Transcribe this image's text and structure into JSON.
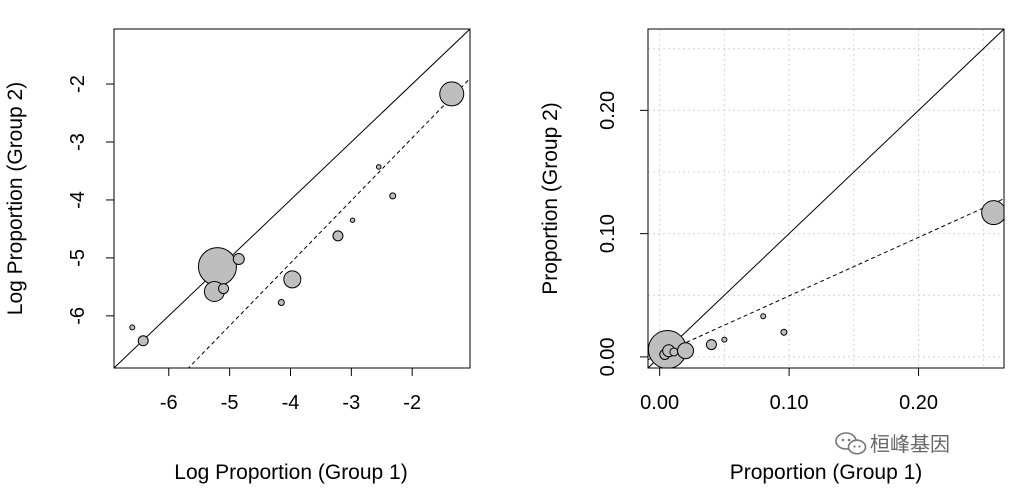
{
  "chart_data": [
    {
      "type": "scatter",
      "title": "",
      "xlabel": "Log Proportion (Group 1)",
      "ylabel": "Log Proportion (Group 2)",
      "xlim": [
        -6.9,
        -1.05
      ],
      "ylim": [
        -6.9,
        -1.05
      ],
      "xticks": [
        -6,
        -5,
        -4,
        -3,
        -2
      ],
      "xtick_labels": [
        "-6",
        "-5",
        "-4",
        "-3",
        "-2"
      ],
      "yticks": [
        -6,
        -5,
        -4,
        -3,
        -2
      ],
      "ytick_labels": [
        "-6",
        "-5",
        "-4",
        "-3",
        "-2"
      ],
      "grid": false,
      "lines": [
        {
          "name": "identity",
          "style": "solid",
          "slope": 1,
          "intercept": 0
        },
        {
          "name": "fit",
          "style": "dashed",
          "slope": 1.08,
          "intercept": -0.77
        }
      ],
      "points": [
        {
          "x": -6.6,
          "y": -6.2,
          "size": 2.5
        },
        {
          "x": -6.42,
          "y": -6.43,
          "size": 5
        },
        {
          "x": -5.2,
          "y": -5.15,
          "size": 19
        },
        {
          "x": -5.25,
          "y": -5.58,
          "size": 10
        },
        {
          "x": -5.1,
          "y": -5.53,
          "size": 5
        },
        {
          "x": -4.85,
          "y": -5.02,
          "size": 5.5
        },
        {
          "x": -4.15,
          "y": -5.77,
          "size": 3
        },
        {
          "x": -3.97,
          "y": -5.37,
          "size": 8.5
        },
        {
          "x": -3.22,
          "y": -4.62,
          "size": 5
        },
        {
          "x": -2.98,
          "y": -4.35,
          "size": 2.2
        },
        {
          "x": -2.55,
          "y": -3.43,
          "size": 2.3
        },
        {
          "x": -2.32,
          "y": -3.93,
          "size": 3
        },
        {
          "x": -1.35,
          "y": -2.17,
          "size": 12
        }
      ]
    },
    {
      "type": "scatter",
      "title": "",
      "xlabel": "Proportion (Group 1)",
      "ylabel": "Proportion (Group 2)",
      "xlim": [
        -0.009,
        0.266
      ],
      "ylim": [
        -0.009,
        0.266
      ],
      "xticks": [
        0.0,
        0.1,
        0.2
      ],
      "xtick_labels": [
        "0.00",
        "0.10",
        "0.20"
      ],
      "yticks": [
        0.0,
        0.1,
        0.2
      ],
      "ytick_labels": [
        "0.00",
        "0.10",
        "0.20"
      ],
      "grid": true,
      "grid_step": 0.05,
      "lines": [
        {
          "name": "identity",
          "style": "solid",
          "slope": 1,
          "intercept": 0
        },
        {
          "name": "fit",
          "style": "dashed",
          "slope": 0.475,
          "intercept": 0.002
        }
      ],
      "points": [
        {
          "x": 0.006,
          "y": 0.006,
          "size": 19
        },
        {
          "x": 0.004,
          "y": 0.002,
          "size": 5
        },
        {
          "x": 0.007,
          "y": 0.005,
          "size": 6
        },
        {
          "x": 0.011,
          "y": 0.004,
          "size": 4
        },
        {
          "x": 0.016,
          "y": 0.005,
          "size": 3
        },
        {
          "x": 0.02,
          "y": 0.005,
          "size": 8
        },
        {
          "x": 0.04,
          "y": 0.01,
          "size": 5
        },
        {
          "x": 0.05,
          "y": 0.014,
          "size": 2.5
        },
        {
          "x": 0.08,
          "y": 0.033,
          "size": 2.5
        },
        {
          "x": 0.096,
          "y": 0.02,
          "size": 3
        },
        {
          "x": 0.258,
          "y": 0.117,
          "size": 12
        }
      ]
    }
  ],
  "watermark": {
    "icon": "wechat-icon",
    "text": "桓峰基因"
  }
}
